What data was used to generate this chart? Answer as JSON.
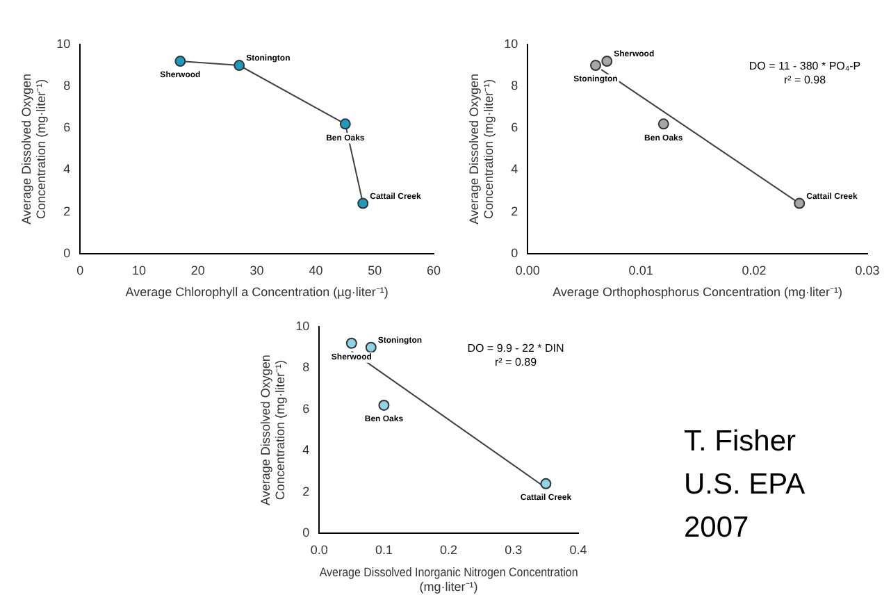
{
  "chart_data": [
    {
      "type": "scatter",
      "xlabel": "Average Chlorophyll a Concentration (µg·liter⁻¹)",
      "ylabel": "Average Dissolved Oxygen Concentration (mg·liter⁻¹)",
      "xlim": [
        0,
        60
      ],
      "xticks": [
        0,
        10,
        20,
        30,
        40,
        50,
        60
      ],
      "ylim": [
        0,
        10
      ],
      "yticks": [
        0,
        2,
        4,
        6,
        8,
        10
      ],
      "series": [
        {
          "type": "line",
          "marker": "circle",
          "color": "#1a9bbf",
          "x": [
            17,
            27,
            45,
            48
          ],
          "values": [
            9.2,
            9.0,
            6.2,
            2.4
          ]
        }
      ],
      "annotations": [
        {
          "text": "Sherwood",
          "x": 17,
          "y": 9.2
        },
        {
          "text": "Stonington",
          "x": 27,
          "y": 9.0
        },
        {
          "text": "Ben Oaks",
          "x": 45,
          "y": 6.2
        },
        {
          "text": "Cattail Creek",
          "x": 48,
          "y": 2.4
        }
      ]
    },
    {
      "type": "scatter",
      "xlabel": "Average Orthophosphorus Concentration (mg·liter⁻¹)",
      "ylabel": "Average Dissolved Oxygen Concentration (mg·liter⁻¹)",
      "xlim": [
        0,
        0.03
      ],
      "xticks": [
        {
          "value": 0,
          "label": "0.00"
        },
        {
          "value": 0.01,
          "label": "0.01"
        },
        {
          "value": 0.02,
          "label": "0.02"
        },
        {
          "value": 0.03,
          "label": "0.03"
        }
      ],
      "ylim": [
        0,
        10
      ],
      "yticks": [
        0,
        2,
        4,
        6,
        8,
        10
      ],
      "series": [
        {
          "type": "scatter",
          "marker": "circle",
          "color": "#a6a6a6",
          "x": [
            0.006,
            0.007,
            0.012,
            0.024
          ],
          "values": [
            9.0,
            9.2,
            6.2,
            2.4
          ]
        },
        {
          "type": "line",
          "marker": "none",
          "color": "#404040",
          "x": [
            0.0065,
            0.024
          ],
          "values": [
            8.8,
            2.4
          ]
        }
      ],
      "annotations": [
        {
          "text": "Stonington",
          "x": 0.006,
          "y": 9.0
        },
        {
          "text": "Sherwood",
          "x": 0.007,
          "y": 9.2
        },
        {
          "text": "Ben Oaks",
          "x": 0.012,
          "y": 6.2
        },
        {
          "text": "Cattail Creek",
          "x": 0.024,
          "y": 2.4
        },
        "DO = 11 - 380 * PO₄-P",
        "r² = 0.98"
      ]
    },
    {
      "type": "scatter",
      "xlabel": "Average Dissolved Inorganic Nitrogen Concentration (mg·liter⁻¹)",
      "ylabel": "Average Dissolved Oxygen Concentration (mg·liter⁻¹)",
      "xlim": [
        0,
        0.4
      ],
      "xticks": [
        {
          "value": 0,
          "label": "0.0"
        },
        {
          "value": 0.1,
          "label": "0.1"
        },
        {
          "value": 0.2,
          "label": "0.2"
        },
        {
          "value": 0.3,
          "label": "0.3"
        },
        {
          "value": 0.4,
          "label": "0.4"
        }
      ],
      "ylim": [
        0,
        10
      ],
      "yticks": [
        0,
        2,
        4,
        6,
        8,
        10
      ],
      "series": [
        {
          "type": "scatter",
          "marker": "circle",
          "color": "#8fd3e6",
          "x": [
            0.05,
            0.08,
            0.1,
            0.35
          ],
          "values": [
            9.2,
            9.0,
            6.2,
            2.4
          ]
        },
        {
          "type": "line",
          "marker": "none",
          "color": "#404040",
          "x": [
            0.05,
            0.35
          ],
          "values": [
            8.8,
            2.2
          ]
        }
      ],
      "annotations": [
        {
          "text": "Sherwood",
          "x": 0.05,
          "y": 9.2
        },
        {
          "text": "Stonington",
          "x": 0.08,
          "y": 9.0
        },
        {
          "text": "Ben Oaks",
          "x": 0.1,
          "y": 6.2
        },
        {
          "text": "Cattail Creek",
          "x": 0.35,
          "y": 2.4
        },
        "DO = 9.9 - 22 * DIN",
        "r² = 0.89"
      ]
    },
    {
      "type": "other",
      "annotations": [
        "T. Fisher",
        "U.S. EPA",
        "2007"
      ]
    }
  ]
}
